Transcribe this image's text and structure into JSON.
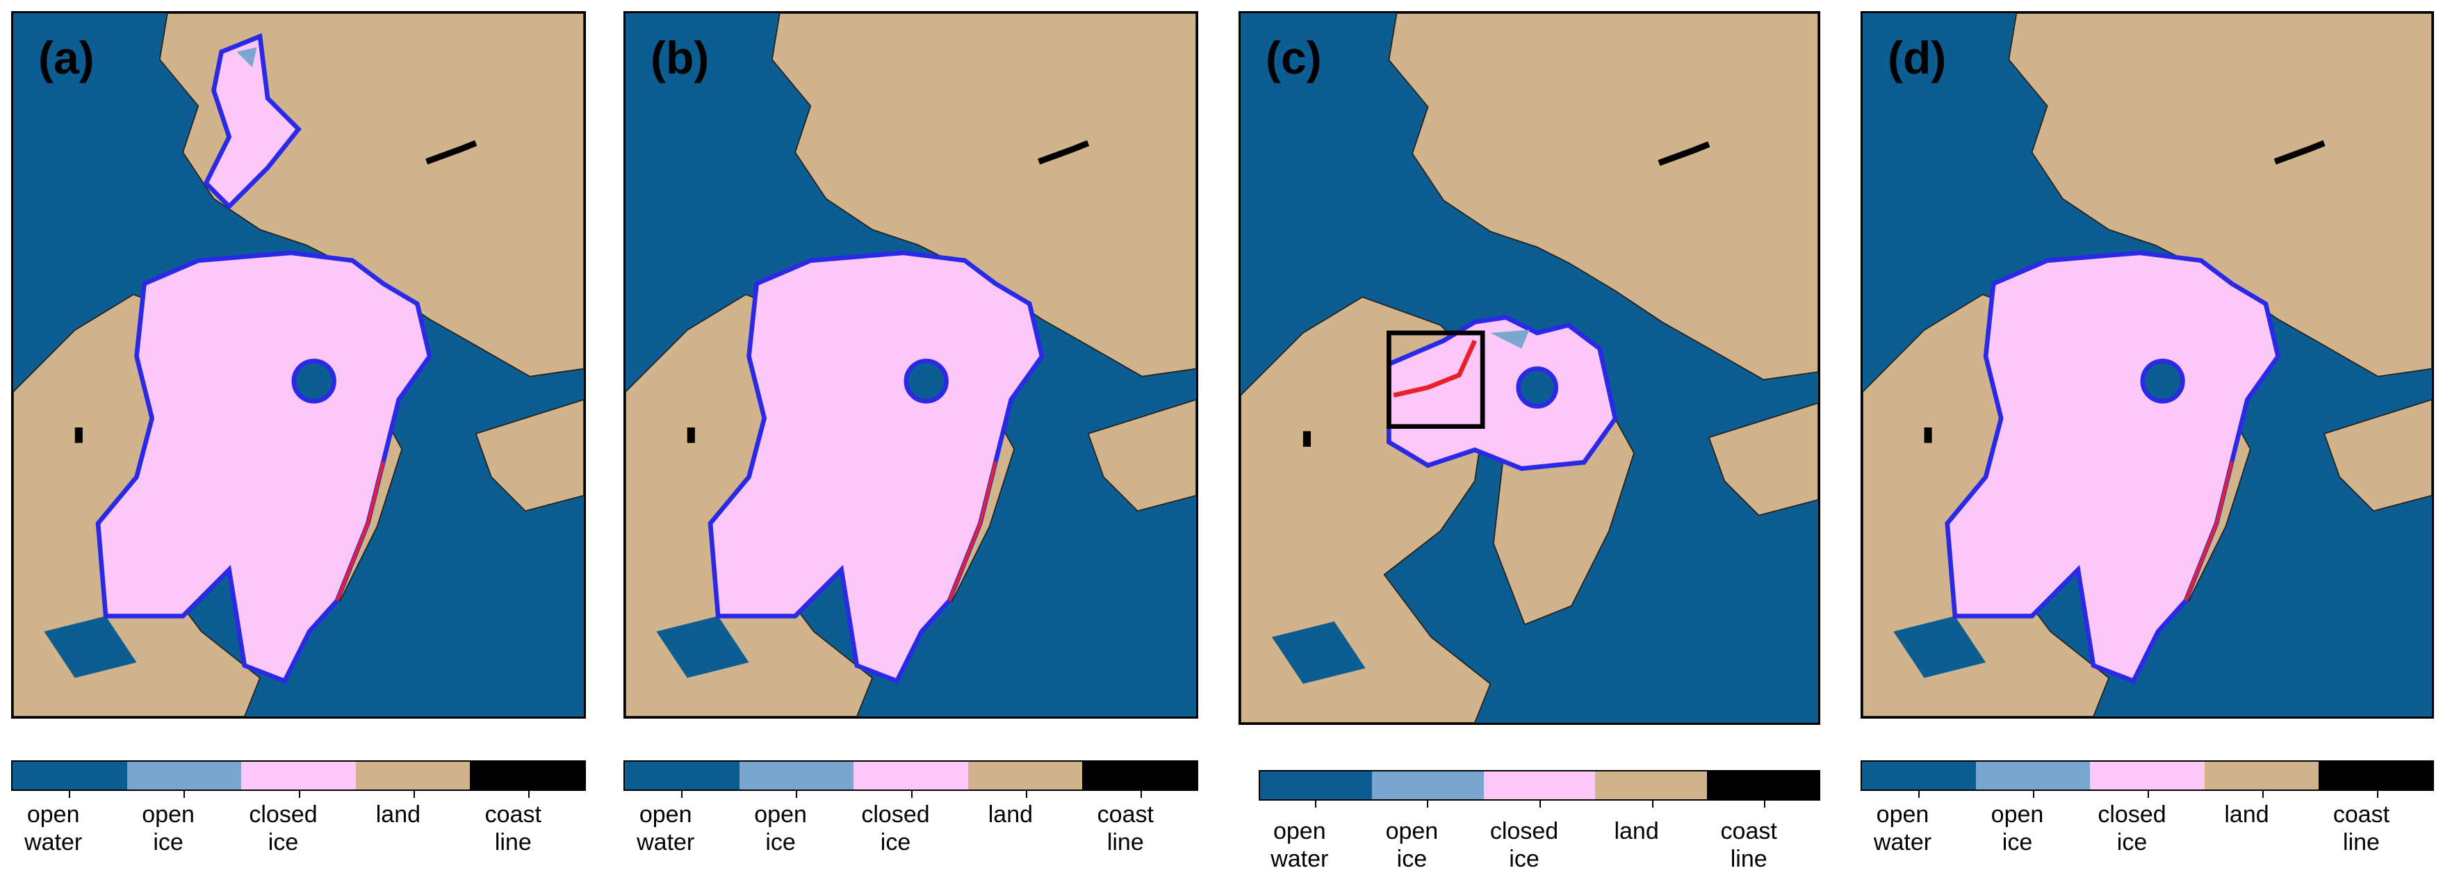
{
  "panels": [
    {
      "label": "(a)",
      "legend": [
        [
          "open",
          "water"
        ],
        [
          "open",
          "ice"
        ],
        [
          "closed",
          "ice"
        ],
        [
          "land"
        ],
        [
          "coast",
          "line"
        ]
      ]
    },
    {
      "label": "(b)",
      "legend": [
        [
          "open",
          "water"
        ],
        [
          "open",
          "ice"
        ],
        [
          "closed",
          "ice"
        ],
        [
          "land"
        ],
        [
          "coast",
          "line"
        ]
      ]
    },
    {
      "label": "(c)",
      "legend": [
        [
          "open",
          "water"
        ],
        [
          "open",
          "ice"
        ],
        [
          "closed",
          "ice"
        ],
        [
          "land"
        ],
        [
          "coast",
          "line"
        ]
      ]
    },
    {
      "label": "(d)",
      "legend": [
        [
          "open",
          "water"
        ],
        [
          "open",
          "ice"
        ],
        [
          "closed",
          "ice"
        ],
        [
          "land"
        ],
        [
          "coast",
          "line"
        ]
      ]
    }
  ]
}
